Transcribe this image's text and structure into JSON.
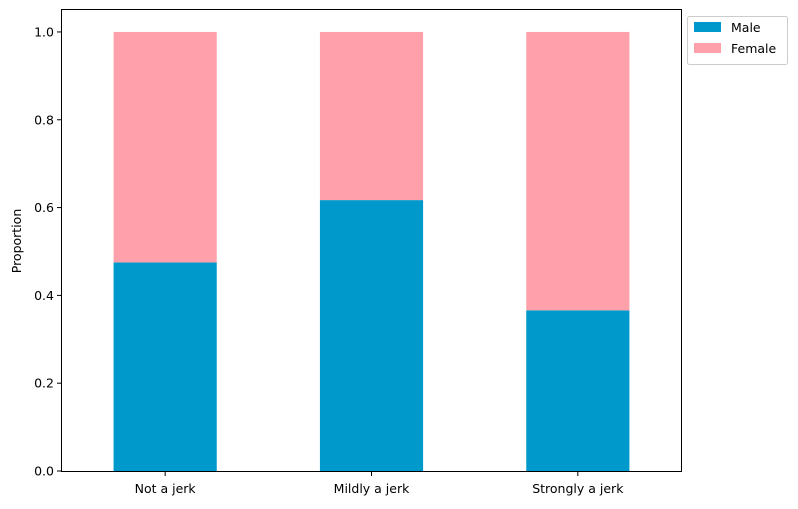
{
  "chart_data": {
    "type": "bar",
    "stacked": true,
    "categories": [
      "Not a jerk",
      "Mildly a jerk",
      "Strongly a jerk"
    ],
    "series": [
      {
        "name": "Male",
        "color": "#0099cc",
        "values": [
          0.475,
          0.617,
          0.366
        ]
      },
      {
        "name": "Female",
        "color": "#ffa0aa",
        "values": [
          0.525,
          0.383,
          0.634
        ]
      }
    ],
    "xlabel": "",
    "ylabel": "Proportion",
    "ylim": [
      0.0,
      1.05
    ],
    "yticks": [
      "0.0",
      "0.2",
      "0.4",
      "0.6",
      "0.8",
      "1.0"
    ],
    "grid": false,
    "legend_position": "outside top-right"
  }
}
